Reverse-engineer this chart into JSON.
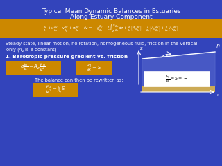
{
  "bg_color": "#3344bb",
  "title_line1": "Typical Mean Dynamic Balances in Estuaries",
  "title_line2": "Along-Estuary Component",
  "title_color": "white",
  "title_fontsize": 6.5,
  "orange_bar_color": "#cc8800",
  "main_eq": "$\\frac{\\partial u}{\\partial t} + u\\frac{\\partial u}{\\partial x} + v\\frac{\\partial u}{\\partial y} + w\\frac{\\partial u}{\\partial z} - fv = -g\\frac{\\partial \\eta}{\\partial x} - \\frac{g}{\\rho}\\int_{z}^{\\eta}\\frac{\\partial \\rho}{\\partial x}dz + \\frac{\\partial}{\\partial x}\\left[A_x\\frac{\\partial u}{\\partial x}\\right] + \\frac{\\partial}{\\partial y}\\left[A_y\\frac{\\partial u}{\\partial y}\\right] + \\frac{\\partial}{\\partial z}\\left[A_z\\frac{\\partial u}{\\partial z}\\right]$",
  "main_eq_fontsize": 4.0,
  "steady_text1": "Steady state, linear motion, no rotation, homogeneous fluid, friction in the vertical",
  "steady_text2": "only ($A_z$ is a constant)",
  "steady_fontsize": 4.8,
  "section_title": "1. Barotropic pressure gradient vs. friction",
  "section_fontsize": 5.2,
  "eq1a": "$g\\frac{\\partial \\eta}{\\partial x} = A_z\\frac{\\partial^2 u}{\\partial z^2}$",
  "eq1b": "$\\frac{\\partial \\eta}{\\partial x} = S$",
  "eq2": "$\\frac{\\partial^2 u}{\\partial z^2} = \\frac{g}{A_z}S$",
  "rewrite_text": "The balance can then be rewritten as:",
  "eq_fontsize": 5.0,
  "diagram_eq": "$\\frac{\\partial \\eta}{\\partial x} = S = -$",
  "diagram_eq_fontsize": 4.5
}
